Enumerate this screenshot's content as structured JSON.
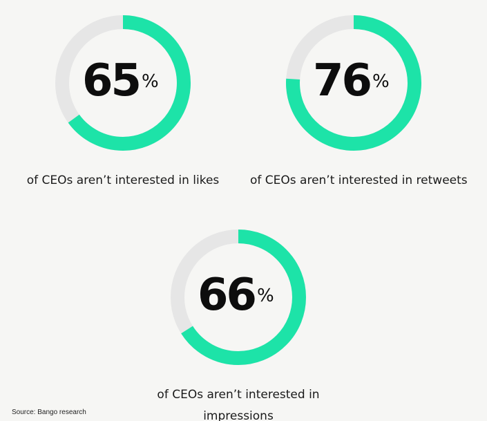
{
  "chart_data": {
    "type": "donut",
    "colors": {
      "filled": "#1de3a8",
      "track": "#e6e6e6",
      "text": "#0d0d0d"
    },
    "items": [
      {
        "value": 65,
        "number_label": "65",
        "unit": "%",
        "caption": "of CEOs aren’t interested in likes"
      },
      {
        "value": 76,
        "number_label": "76",
        "unit": "%",
        "caption": "of CEOs aren’t interested in retweets"
      },
      {
        "value": 66,
        "number_label": "66",
        "unit": "%",
        "caption_lines": [
          "of CEOs aren’t interested in",
          "impressions"
        ]
      }
    ]
  },
  "source": "Source: Bango research"
}
